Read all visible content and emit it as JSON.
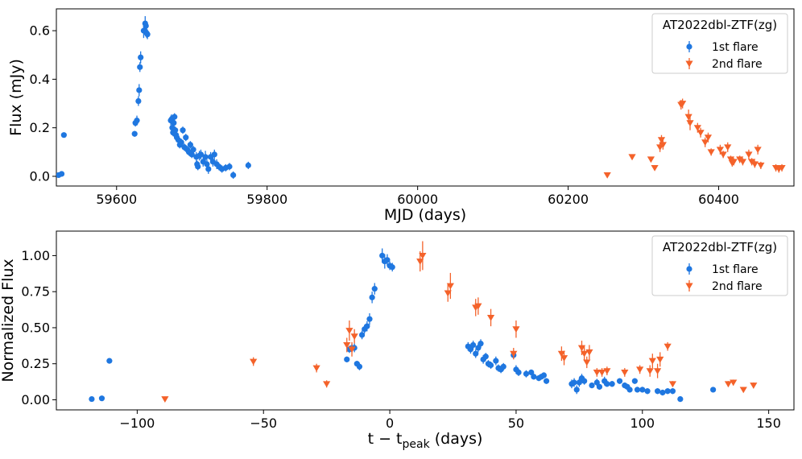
{
  "colors": {
    "flare1": "#1f77e0",
    "flare2": "#f4622a",
    "axis": "#000000",
    "legend_border": "#cccccc"
  },
  "chart_data": [
    {
      "type": "scatter",
      "xlabel": "MJD (days)",
      "ylabel": "Flux (mJy)",
      "xlim": [
        59520,
        60500
      ],
      "ylim": [
        -0.04,
        0.69
      ],
      "xticks": [
        59600,
        59800,
        60000,
        60200,
        60400
      ],
      "yticks": [
        0.0,
        0.2,
        0.4,
        0.6
      ],
      "xtick_labels": [
        "59600",
        "59800",
        "60000",
        "60200",
        "60400"
      ],
      "ytick_labels": [
        "0.0",
        "0.2",
        "0.4",
        "0.6"
      ],
      "legend": {
        "title": "AT2022dbl-ZTF(zg)",
        "position": "top-right"
      },
      "series": [
        {
          "name": "1st flare",
          "marker": "circle",
          "points": [
            [
              59523,
              0.005,
              0.006
            ],
            [
              59527,
              0.01,
              0.006
            ],
            [
              59530,
              0.17,
              0.008
            ],
            [
              59624,
              0.175,
              0.012
            ],
            [
              59625,
              0.22,
              0.015
            ],
            [
              59627,
              0.23,
              0.02
            ],
            [
              59629,
              0.31,
              0.02
            ],
            [
              59630,
              0.355,
              0.025
            ],
            [
              59631,
              0.45,
              0.02
            ],
            [
              59632,
              0.49,
              0.025
            ],
            [
              59636,
              0.6,
              0.03
            ],
            [
              59638,
              0.63,
              0.03
            ],
            [
              59639,
              0.62,
              0.02
            ],
            [
              59640,
              0.59,
              0.02
            ],
            [
              59641,
              0.585,
              0.02
            ],
            [
              59672,
              0.23,
              0.02
            ],
            [
              59673,
              0.235,
              0.02
            ],
            [
              59674,
              0.2,
              0.02
            ],
            [
              59675,
              0.18,
              0.015
            ],
            [
              59676,
              0.22,
              0.015
            ],
            [
              59677,
              0.245,
              0.015
            ],
            [
              59678,
              0.19,
              0.015
            ],
            [
              59679,
              0.17,
              0.015
            ],
            [
              59680,
              0.16,
              0.015
            ],
            [
              59682,
              0.15,
              0.015
            ],
            [
              59684,
              0.13,
              0.015
            ],
            [
              59686,
              0.14,
              0.015
            ],
            [
              59688,
              0.19,
              0.015
            ],
            [
              59690,
              0.12,
              0.015
            ],
            [
              59692,
              0.16,
              0.015
            ],
            [
              59694,
              0.11,
              0.015
            ],
            [
              59696,
              0.1,
              0.015
            ],
            [
              59698,
              0.13,
              0.015
            ],
            [
              59700,
              0.09,
              0.015
            ],
            [
              59702,
              0.11,
              0.015
            ],
            [
              59706,
              0.08,
              0.02
            ],
            [
              59707,
              0.05,
              0.015
            ],
            [
              59708,
              0.04,
              0.015
            ],
            [
              59710,
              0.085,
              0.02
            ],
            [
              59712,
              0.09,
              0.02
            ],
            [
              59715,
              0.06,
              0.02
            ],
            [
              59718,
              0.08,
              0.025
            ],
            [
              59720,
              0.05,
              0.02
            ],
            [
              59722,
              0.03,
              0.02
            ],
            [
              59725,
              0.08,
              0.02
            ],
            [
              59728,
              0.06,
              0.02
            ],
            [
              59730,
              0.09,
              0.02
            ],
            [
              59733,
              0.05,
              0.02
            ],
            [
              59736,
              0.04,
              0.015
            ],
            [
              59740,
              0.03,
              0.015
            ],
            [
              59745,
              0.035,
              0.015
            ],
            [
              59750,
              0.04,
              0.015
            ],
            [
              59755,
              0.005,
              0.015
            ],
            [
              59775,
              0.045,
              0.015
            ]
          ]
        },
        {
          "name": "2nd flare",
          "marker": "triangle-down",
          "points": [
            [
              60252,
              0.005,
              0.006
            ],
            [
              60285,
              0.08,
              0.01
            ],
            [
              60310,
              0.07,
              0.01
            ],
            [
              60315,
              0.035,
              0.01
            ],
            [
              60322,
              0.12,
              0.02
            ],
            [
              60324,
              0.15,
              0.02
            ],
            [
              60326,
              0.13,
              0.02
            ],
            [
              60350,
              0.295,
              0.02
            ],
            [
              60352,
              0.3,
              0.02
            ],
            [
              60360,
              0.245,
              0.03
            ],
            [
              60362,
              0.22,
              0.03
            ],
            [
              60372,
              0.2,
              0.02
            ],
            [
              60376,
              0.18,
              0.02
            ],
            [
              60382,
              0.14,
              0.02
            ],
            [
              60386,
              0.16,
              0.02
            ],
            [
              60390,
              0.1,
              0.015
            ],
            [
              60402,
              0.11,
              0.02
            ],
            [
              60406,
              0.09,
              0.015
            ],
            [
              60412,
              0.12,
              0.02
            ],
            [
              60416,
              0.07,
              0.015
            ],
            [
              60418,
              0.055,
              0.015
            ],
            [
              60420,
              0.06,
              0.015
            ],
            [
              60428,
              0.07,
              0.015
            ],
            [
              60432,
              0.06,
              0.015
            ],
            [
              60440,
              0.09,
              0.02
            ],
            [
              60444,
              0.06,
              0.015
            ],
            [
              60448,
              0.05,
              0.015
            ],
            [
              60452,
              0.11,
              0.02
            ],
            [
              60456,
              0.045,
              0.015
            ],
            [
              60476,
              0.035,
              0.015
            ],
            [
              60480,
              0.03,
              0.015
            ],
            [
              60484,
              0.035,
              0.015
            ]
          ]
        }
      ]
    },
    {
      "type": "scatter",
      "xlabel": "t − t_peak (days)",
      "xlabel_main": "t − t",
      "xlabel_sub": "peak",
      "xlabel_tail": " (days)",
      "ylabel": "Normalized Flux",
      "xlim": [
        -132,
        160
      ],
      "ylim": [
        -0.07,
        1.17
      ],
      "xticks": [
        -100,
        -50,
        0,
        50,
        100,
        150
      ],
      "yticks": [
        0.0,
        0.25,
        0.5,
        0.75,
        1.0
      ],
      "xtick_labels": [
        "−100",
        "−50",
        "0",
        "50",
        "100",
        "150"
      ],
      "ytick_labels": [
        "0.00",
        "0.25",
        "0.50",
        "0.75",
        "1.00"
      ],
      "legend": {
        "title": "AT2022dbl-ZTF(zg)",
        "position": "top-right"
      },
      "series": [
        {
          "name": "1st flare",
          "marker": "circle",
          "points": [
            [
              -118,
              0.005,
              0.01
            ],
            [
              -114,
              0.01,
              0.01
            ],
            [
              -111,
              0.27,
              0.01
            ],
            [
              -17,
              0.28,
              0.02
            ],
            [
              -16,
              0.35,
              0.025
            ],
            [
              -15,
              0.36,
              0.03
            ],
            [
              -14,
              0.36,
              0.03
            ],
            [
              -13,
              0.25,
              0.02
            ],
            [
              -12,
              0.23,
              0.025
            ],
            [
              -11,
              0.45,
              0.03
            ],
            [
              -10,
              0.49,
              0.03
            ],
            [
              -9,
              0.51,
              0.035
            ],
            [
              -8,
              0.56,
              0.04
            ],
            [
              -7,
              0.71,
              0.04
            ],
            [
              -6,
              0.77,
              0.04
            ],
            [
              -3,
              1.0,
              0.05
            ],
            [
              -2,
              0.96,
              0.05
            ],
            [
              -1,
              0.97,
              0.04
            ],
            [
              0,
              0.93,
              0.03
            ],
            [
              1,
              0.92,
              0.03
            ],
            [
              31,
              0.37,
              0.03
            ],
            [
              32,
              0.35,
              0.03
            ],
            [
              33,
              0.38,
              0.03
            ],
            [
              34,
              0.32,
              0.03
            ],
            [
              35,
              0.36,
              0.03
            ],
            [
              36,
              0.39,
              0.03
            ],
            [
              37,
              0.28,
              0.03
            ],
            [
              38,
              0.3,
              0.025
            ],
            [
              39,
              0.25,
              0.025
            ],
            [
              40,
              0.24,
              0.025
            ],
            [
              42,
              0.27,
              0.03
            ],
            [
              43,
              0.22,
              0.025
            ],
            [
              44,
              0.21,
              0.025
            ],
            [
              45,
              0.23,
              0.025
            ],
            [
              49,
              0.31,
              0.025
            ],
            [
              50,
              0.21,
              0.03
            ],
            [
              51,
              0.19,
              0.025
            ],
            [
              54,
              0.18,
              0.025
            ],
            [
              56,
              0.19,
              0.02
            ],
            [
              57,
              0.16,
              0.02
            ],
            [
              59,
              0.15,
              0.02
            ],
            [
              60,
              0.16,
              0.02
            ],
            [
              61,
              0.17,
              0.02
            ],
            [
              62,
              0.13,
              0.02
            ],
            [
              72,
              0.11,
              0.03
            ],
            [
              73,
              0.12,
              0.03
            ],
            [
              74,
              0.07,
              0.03
            ],
            [
              75,
              0.12,
              0.03
            ],
            [
              76,
              0.15,
              0.03
            ],
            [
              77,
              0.13,
              0.025
            ],
            [
              80,
              0.1,
              0.02
            ],
            [
              82,
              0.12,
              0.025
            ],
            [
              83,
              0.09,
              0.02
            ],
            [
              85,
              0.13,
              0.03
            ],
            [
              86,
              0.11,
              0.02
            ],
            [
              88,
              0.11,
              0.02
            ],
            [
              91,
              0.13,
              0.02
            ],
            [
              93,
              0.1,
              0.02
            ],
            [
              94,
              0.09,
              0.02
            ],
            [
              95,
              0.07,
              0.02
            ],
            [
              97,
              0.13,
              0.02
            ],
            [
              98,
              0.07,
              0.02
            ],
            [
              100,
              0.07,
              0.02
            ],
            [
              102,
              0.06,
              0.02
            ],
            [
              106,
              0.06,
              0.02
            ],
            [
              108,
              0.05,
              0.02
            ],
            [
              110,
              0.06,
              0.02
            ],
            [
              112,
              0.06,
              0.02
            ],
            [
              115,
              0.005,
              0.02
            ],
            [
              128,
              0.07,
              0.015
            ]
          ]
        },
        {
          "name": "2nd flare",
          "marker": "triangle-down",
          "points": [
            [
              -89,
              0.005,
              0.015
            ],
            [
              -54,
              0.265,
              0.03
            ],
            [
              -29,
              0.22,
              0.03
            ],
            [
              -25,
              0.11,
              0.025
            ],
            [
              -17,
              0.38,
              0.05
            ],
            [
              -16,
              0.48,
              0.07
            ],
            [
              -15,
              0.35,
              0.05
            ],
            [
              -14,
              0.44,
              0.05
            ],
            [
              12,
              0.96,
              0.07
            ],
            [
              13,
              1.0,
              0.1
            ],
            [
              23,
              0.74,
              0.06
            ],
            [
              24,
              0.79,
              0.09
            ],
            [
              34,
              0.64,
              0.06
            ],
            [
              35,
              0.65,
              0.06
            ],
            [
              40,
              0.57,
              0.06
            ],
            [
              49,
              0.32,
              0.04
            ],
            [
              50,
              0.49,
              0.06
            ],
            [
              68,
              0.32,
              0.05
            ],
            [
              69,
              0.29,
              0.05
            ],
            [
              76,
              0.36,
              0.05
            ],
            [
              77,
              0.32,
              0.05
            ],
            [
              78,
              0.26,
              0.04
            ],
            [
              79,
              0.33,
              0.05
            ],
            [
              82,
              0.19,
              0.03
            ],
            [
              84,
              0.19,
              0.03
            ],
            [
              86,
              0.2,
              0.03
            ],
            [
              93,
              0.19,
              0.03
            ],
            [
              99,
              0.21,
              0.03
            ],
            [
              103,
              0.2,
              0.04
            ],
            [
              104,
              0.27,
              0.05
            ],
            [
              106,
              0.2,
              0.05
            ],
            [
              107,
              0.28,
              0.05
            ],
            [
              110,
              0.37,
              0.03
            ],
            [
              112,
              0.11,
              0.02
            ],
            [
              134,
              0.11,
              0.02
            ],
            [
              136,
              0.12,
              0.02
            ],
            [
              140,
              0.07,
              0.015
            ],
            [
              144,
              0.1,
              0.02
            ]
          ]
        }
      ]
    }
  ]
}
